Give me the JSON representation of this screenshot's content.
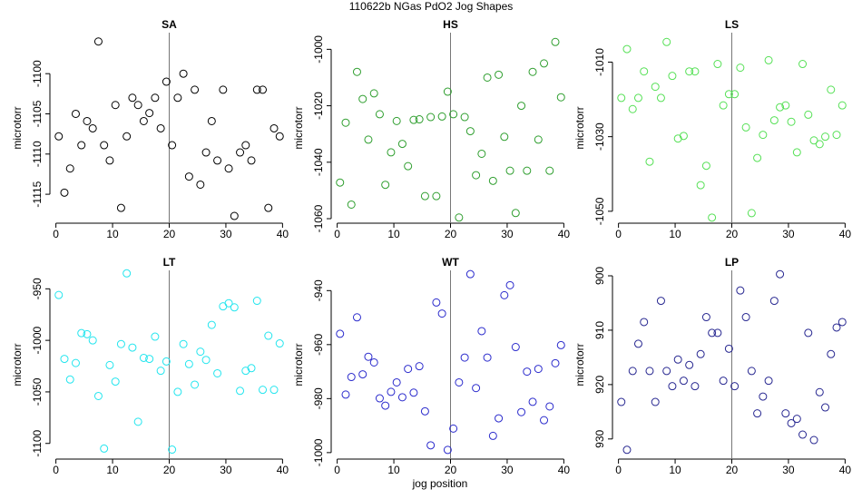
{
  "title": "110622b   NGas PdO2 Jog Shapes",
  "x_label": "jog position",
  "chart_data": [
    {
      "type": "scatter",
      "title": "SA",
      "y_label": "microtorr",
      "color": "#000000",
      "vline": 20,
      "xlim": [
        -1.06,
        41.06
      ],
      "xticks": [
        0,
        10,
        20,
        30,
        40
      ],
      "ylim": [
        -1118.6,
        -1094.9
      ],
      "yticks": [
        -1100,
        -1105,
        -1110,
        -1115
      ],
      "x": [
        0.5,
        1.5,
        2.5,
        3.5,
        4.5,
        5.5,
        6.5,
        7.5,
        8.5,
        9.5,
        10.5,
        11.5,
        12.5,
        13.5,
        14.5,
        15.5,
        16.5,
        17.5,
        18.5,
        19.5,
        20.5,
        21.5,
        22.5,
        23.5,
        24.5,
        25.5,
        26.5,
        27.5,
        28.5,
        29.5,
        30.5,
        31.5,
        32.5,
        33.5,
        34.5,
        35.5,
        36.5,
        37.5,
        38.5,
        39.5
      ],
      "values": [
        -1107.8,
        -1114.8,
        -1111.8,
        -1105,
        -1108.9,
        -1105.9,
        -1106.8,
        -1096,
        -1108.9,
        -1110.8,
        -1103.9,
        -1116.7,
        -1107.8,
        -1103,
        -1103.9,
        -1105.9,
        -1104.9,
        -1103,
        -1106.8,
        -1101,
        -1108.9,
        -1103,
        -1100,
        -1112.8,
        -1102,
        -1113.8,
        -1109.8,
        -1105.9,
        -1110.8,
        -1102,
        -1111.8,
        -1117.7,
        -1109.8,
        -1108.9,
        -1110.8,
        -1102,
        -1102,
        -1116.7,
        -1106.8,
        -1107.8
      ]
    },
    {
      "type": "scatter",
      "title": "HS",
      "y_label": "microtorr",
      "color": "#2e9e2e",
      "vline": 20,
      "xlim": [
        -1.06,
        41.06
      ],
      "xticks": [
        0,
        10,
        20,
        30,
        40
      ],
      "ylim": [
        -1061.6,
        -994.1
      ],
      "yticks": [
        -1000,
        -1020,
        -1040,
        -1060
      ],
      "x": [
        0.5,
        1.5,
        2.5,
        3.5,
        4.5,
        5.5,
        6.5,
        7.5,
        8.5,
        9.5,
        10.5,
        11.5,
        12.5,
        13.5,
        14.5,
        15.5,
        16.5,
        17.5,
        18.5,
        19.5,
        20.5,
        21.5,
        22.5,
        23.5,
        24.5,
        25.5,
        26.5,
        27.5,
        28.5,
        29.5,
        30.5,
        31.5,
        32.5,
        33.5,
        34.5,
        35.5,
        36.5,
        37.5,
        38.5,
        39.5
      ],
      "values": [
        -1047.2,
        -1026,
        -1055,
        -1008,
        -1017.6,
        -1032,
        -1015.6,
        -1023,
        -1048,
        -1036.5,
        -1025.4,
        -1033.5,
        -1041.4,
        -1025,
        -1024.8,
        -1052,
        -1024,
        -1052,
        -1023.8,
        -1015,
        -1023,
        -1059.6,
        -1024,
        -1029,
        -1044.6,
        -1037,
        -1010,
        -1046.6,
        -1009,
        -1031,
        -1043,
        -1058,
        -1020,
        -1043,
        -1008,
        -1032,
        -1005,
        -1043,
        -997.4,
        -1017
      ]
    },
    {
      "type": "scatter",
      "title": "LS",
      "y_label": "microtorr",
      "color": "#55e055",
      "vline": 20,
      "xlim": [
        -1.06,
        41.06
      ],
      "xticks": [
        0,
        10,
        20,
        30,
        40
      ],
      "ylim": [
        -1053.2,
        -1002.1
      ],
      "yticks": [
        -1010,
        -1030,
        -1050
      ],
      "x": [
        0.5,
        1.5,
        2.5,
        3.5,
        4.5,
        5.5,
        6.5,
        7.5,
        8.5,
        9.5,
        10.5,
        11.5,
        12.5,
        13.5,
        14.5,
        15.5,
        16.5,
        17.5,
        18.5,
        19.5,
        20.5,
        21.5,
        22.5,
        23.5,
        24.5,
        25.5,
        26.5,
        27.5,
        28.5,
        29.5,
        30.5,
        31.5,
        32.5,
        33.5,
        34.5,
        35.5,
        36.5,
        37.5,
        38.5,
        39.5
      ],
      "values": [
        -1019.6,
        -1006.5,
        -1022.6,
        -1019.6,
        -1012.5,
        -1036.7,
        -1016.6,
        -1019.6,
        -1004.6,
        -1013.7,
        -1030.5,
        -1029.8,
        -1012.5,
        -1012.5,
        -1043,
        -1037.8,
        -1051.7,
        -1010.5,
        -1021.6,
        -1018.6,
        -1018.6,
        -1011.5,
        -1027.5,
        -1050.5,
        -1035.7,
        -1029.5,
        -1009.5,
        -1025.6,
        -1022.1,
        -1021.6,
        -1026,
        -1034.2,
        -1010.5,
        -1024.1,
        -1031,
        -1032,
        -1030,
        -1017.4,
        -1029.5,
        -1021.6
      ]
    },
    {
      "type": "scatter",
      "title": "LT",
      "y_label": "microtorr",
      "color": "#22e5ee",
      "vline": 20,
      "xlim": [
        -1.06,
        41.06
      ],
      "xticks": [
        0,
        10,
        20,
        30,
        40
      ],
      "ylim": [
        -1115.2,
        -932.1
      ],
      "yticks": [
        -950,
        -1000,
        -1050,
        -1100
      ],
      "x": [
        0.5,
        1.5,
        2.5,
        3.5,
        4.5,
        5.5,
        6.5,
        7.5,
        8.5,
        9.5,
        10.5,
        11.5,
        12.5,
        13.5,
        14.5,
        15.5,
        16.5,
        17.5,
        18.5,
        19.5,
        20.5,
        21.5,
        22.5,
        23.5,
        24.5,
        25.5,
        26.5,
        27.5,
        28.5,
        29.5,
        30.5,
        31.5,
        32.5,
        33.5,
        34.5,
        35.5,
        36.5,
        37.5,
        38.5,
        39.5
      ],
      "values": [
        -956,
        -1018,
        -1038,
        -1022,
        -993,
        -994,
        -1000,
        -1054,
        -1105,
        -1024,
        -1040,
        -1003.6,
        -935,
        -1007,
        -1079,
        -1017,
        -1018,
        -996.4,
        -1029.5,
        -1020.5,
        -1106,
        -1050,
        -1003.6,
        -1023,
        -1043,
        -1011,
        -1019,
        -985,
        -1032,
        -967,
        -964,
        -968,
        -1049,
        -1029.5,
        -1027,
        -961.6,
        -1048,
        -995.5,
        -1048,
        -1003
      ]
    },
    {
      "type": "scatter",
      "title": "WT",
      "y_label": "microtorr",
      "color": "#2a2acc",
      "vline": 20,
      "xlim": [
        -1.06,
        41.06
      ],
      "xticks": [
        0,
        10,
        20,
        30,
        40
      ],
      "ylim": [
        -1002.4,
        -932.5
      ],
      "yticks": [
        -940,
        -960,
        -980,
        -1000
      ],
      "x": [
        0.5,
        1.5,
        2.5,
        3.5,
        4.5,
        5.5,
        6.5,
        7.5,
        8.5,
        9.5,
        10.5,
        11.5,
        12.5,
        13.5,
        14.5,
        15.5,
        16.5,
        17.5,
        18.5,
        19.5,
        20.5,
        21.5,
        22.5,
        23.5,
        24.5,
        25.5,
        26.5,
        27.5,
        28.5,
        29.5,
        30.5,
        31.5,
        32.5,
        33.5,
        34.5,
        35.5,
        36.5,
        37.5,
        38.5,
        39.5
      ],
      "values": [
        -956,
        -978.5,
        -972,
        -949.9,
        -971,
        -964.5,
        -966.6,
        -979.9,
        -982.6,
        -977.5,
        -974,
        -979.5,
        -969,
        -977.8,
        -968,
        -984.7,
        -997.3,
        -944.4,
        -948.5,
        -999,
        -991.1,
        -974,
        -964.8,
        -933.9,
        -976.1,
        -955,
        -964.8,
        -993.8,
        -987.3,
        -941.7,
        -938,
        -960.9,
        -985,
        -970,
        -981.2,
        -969,
        -988,
        -982.9,
        -966.9,
        -960.2
      ]
    },
    {
      "type": "scatter",
      "title": "LP",
      "y_label": "microtorr",
      "color": "#262690",
      "vline": 20,
      "xlim": [
        -1.06,
        41.06
      ],
      "xticks": [
        0,
        10,
        20,
        30,
        40
      ],
      "ylim": [
        933.7,
        899.0
      ],
      "yticks": [
        900,
        910,
        920,
        930
      ],
      "x": [
        0.5,
        1.5,
        2.5,
        3.5,
        4.5,
        5.5,
        6.5,
        7.5,
        8.5,
        9.5,
        10.5,
        11.5,
        12.5,
        13.5,
        14.5,
        15.5,
        16.5,
        17.5,
        18.5,
        19.5,
        20.5,
        21.5,
        22.5,
        23.5,
        24.5,
        25.5,
        26.5,
        27.5,
        28.5,
        29.5,
        30.5,
        31.5,
        32.5,
        33.5,
        34.5,
        35.5,
        36.5,
        37.5,
        38.5,
        39.5
      ],
      "values": [
        923.2,
        932,
        917.5,
        912.5,
        908.5,
        917.5,
        923.2,
        904.6,
        917.5,
        920.3,
        915.4,
        919.3,
        916.4,
        920.3,
        914.4,
        907.6,
        910.5,
        910.5,
        919.3,
        913.4,
        920.3,
        902.7,
        907.6,
        917.5,
        925.3,
        922.2,
        919.3,
        904.6,
        899.7,
        925.3,
        927.1,
        926.3,
        929.2,
        910.5,
        930.2,
        921.4,
        924.2,
        914.4,
        909.5,
        908.5
      ]
    }
  ]
}
